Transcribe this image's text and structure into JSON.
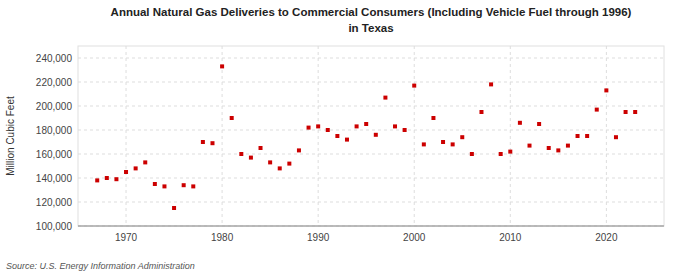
{
  "chart_data": {
    "type": "scatter",
    "title": "Annual Natural Gas Deliveries to Commercial Consumers (Including Vehicle Fuel through 1996)",
    "subtitle": "in Texas",
    "ylabel": "Million Cubic Feet",
    "source": "Source: U.S. Energy Information Administration",
    "color": "#cc0000",
    "marker": "square",
    "grid": true,
    "x": [
      1967,
      1968,
      1969,
      1970,
      1971,
      1972,
      1973,
      1974,
      1975,
      1976,
      1977,
      1978,
      1979,
      1980,
      1981,
      1982,
      1983,
      1984,
      1985,
      1986,
      1987,
      1988,
      1989,
      1990,
      1991,
      1992,
      1993,
      1994,
      1995,
      1996,
      1997,
      1998,
      1999,
      2000,
      2001,
      2002,
      2003,
      2004,
      2005,
      2006,
      2007,
      2008,
      2009,
      2010,
      2011,
      2012,
      2013,
      2014,
      2015,
      2016,
      2017,
      2018,
      2019,
      2020,
      2021,
      2022,
      2023
    ],
    "values": [
      138000,
      140000,
      139000,
      145000,
      148000,
      153000,
      135000,
      133000,
      115000,
      134000,
      133000,
      170000,
      169000,
      233000,
      190000,
      160000,
      157000,
      165000,
      153000,
      148000,
      152000,
      163000,
      182000,
      183000,
      180000,
      175000,
      172000,
      183000,
      185000,
      176000,
      207000,
      183000,
      180000,
      217000,
      168000,
      190000,
      170000,
      168000,
      174000,
      160000,
      195000,
      218000,
      160000,
      162000,
      186000,
      167000,
      185000,
      165000,
      163000,
      167000,
      175000,
      175000,
      197000,
      213000,
      174000,
      195000,
      195000
    ],
    "xlim": [
      1965,
      2026
    ],
    "ylim": [
      100000,
      250000
    ],
    "xticks": [
      1970,
      1980,
      1990,
      2000,
      2010,
      2020
    ],
    "yticks": [
      {
        "value": 100000,
        "label": "100,000"
      },
      {
        "value": 120000,
        "label": "120,000"
      },
      {
        "value": 140000,
        "label": "140,000"
      },
      {
        "value": 160000,
        "label": "160,000"
      },
      {
        "value": 180000,
        "label": "180,000"
      },
      {
        "value": 200000,
        "label": "200,000"
      },
      {
        "value": 220000,
        "label": "220,000"
      },
      {
        "value": 240000,
        "label": "240,000"
      }
    ]
  }
}
